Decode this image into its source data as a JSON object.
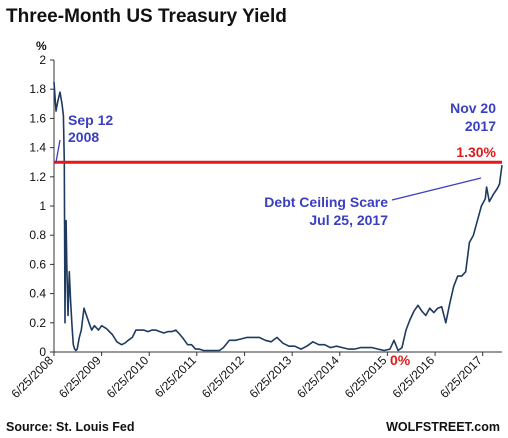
{
  "chart_data": {
    "type": "line",
    "title": "Three-Month US Treasury Yield",
    "ylabel": "%",
    "ylim": [
      0,
      2
    ],
    "yticks": [
      0,
      0.2,
      0.4,
      0.6,
      0.8,
      1,
      1.2,
      1.4,
      1.6,
      1.8,
      2
    ],
    "ytick_labels": [
      "0",
      "0.2",
      "0.4",
      "0.6",
      "0.8",
      "1",
      "1.2",
      "1.4",
      "1.6",
      "1.8",
      "2"
    ],
    "xlim": [
      "2008-06-25",
      "2017-11-20"
    ],
    "xticks": [
      "2008-06-25",
      "2009-06-25",
      "2010-06-25",
      "2011-06-25",
      "2012-06-25",
      "2013-06-25",
      "2014-06-25",
      "2015-06-25",
      "2016-06-25",
      "2017-06-25"
    ],
    "xtick_labels": [
      "6/25/2008",
      "6/25/2009",
      "6/25/2010",
      "6/25/2011",
      "6/25/2012",
      "6/25/2013",
      "6/25/2014",
      "6/25/2015",
      "6/25/2016",
      "6/25/2017"
    ],
    "grid": false,
    "colors": {
      "series": "#1f3a5f",
      "reference": "#e0191b",
      "annotation_blue": "#3a3fc1",
      "annotation_red": "#e0191b"
    },
    "series": [
      {
        "x": [
          "2008-06-25",
          "2008-07-10",
          "2008-07-25",
          "2008-08-10",
          "2008-08-25",
          "2008-09-05",
          "2008-09-12",
          "2008-09-17",
          "2008-09-22",
          "2008-09-26",
          "2008-10-01",
          "2008-10-10",
          "2008-10-20",
          "2008-10-30",
          "2008-11-10",
          "2008-11-20",
          "2008-12-01",
          "2008-12-10",
          "2008-12-20",
          "2009-01-05",
          "2009-01-20",
          "2009-02-10",
          "2009-03-01",
          "2009-03-20",
          "2009-04-10",
          "2009-05-01",
          "2009-06-01",
          "2009-06-25",
          "2009-08-01",
          "2009-09-15",
          "2009-10-20",
          "2009-11-25",
          "2009-12-20",
          "2010-01-15",
          "2010-02-15",
          "2010-03-15",
          "2010-04-15",
          "2010-05-15",
          "2010-06-15",
          "2010-07-15",
          "2010-08-15",
          "2010-09-15",
          "2010-10-15",
          "2010-11-15",
          "2010-12-15",
          "2011-01-15",
          "2011-02-15",
          "2011-03-15",
          "2011-04-15",
          "2011-05-15",
          "2011-06-15",
          "2011-07-15",
          "2011-08-15",
          "2011-09-15",
          "2011-10-15",
          "2011-11-15",
          "2011-12-15",
          "2012-01-15",
          "2012-03-01",
          "2012-04-15",
          "2012-06-01",
          "2012-07-15",
          "2012-09-01",
          "2012-10-15",
          "2012-12-01",
          "2013-01-15",
          "2013-03-01",
          "2013-04-15",
          "2013-06-01",
          "2013-07-15",
          "2013-09-01",
          "2013-10-15",
          "2013-12-01",
          "2014-01-15",
          "2014-03-01",
          "2014-04-15",
          "2014-06-01",
          "2014-07-15",
          "2014-09-01",
          "2014-10-15",
          "2014-12-01",
          "2015-01-15",
          "2015-03-01",
          "2015-04-15",
          "2015-06-01",
          "2015-07-15",
          "2015-08-15",
          "2015-09-15",
          "2015-10-15",
          "2015-11-15",
          "2015-12-15",
          "2016-01-15",
          "2016-02-15",
          "2016-03-15",
          "2016-04-15",
          "2016-05-15",
          "2016-06-15",
          "2016-07-15",
          "2016-08-15",
          "2016-09-15",
          "2016-10-15",
          "2016-11-15",
          "2016-12-15",
          "2017-01-15",
          "2017-02-15",
          "2017-03-15",
          "2017-04-15",
          "2017-05-15",
          "2017-06-15",
          "2017-07-15",
          "2017-07-25",
          "2017-08-15",
          "2017-09-15",
          "2017-10-15",
          "2017-11-01",
          "2017-11-20"
        ],
        "values": [
          1.85,
          1.65,
          1.72,
          1.78,
          1.7,
          1.62,
          1.3,
          0.2,
          0.85,
          0.9,
          0.6,
          0.25,
          0.55,
          0.35,
          0.18,
          0.05,
          0.02,
          0.01,
          0.02,
          0.1,
          0.15,
          0.3,
          0.25,
          0.2,
          0.15,
          0.18,
          0.15,
          0.18,
          0.16,
          0.12,
          0.07,
          0.05,
          0.06,
          0.08,
          0.1,
          0.15,
          0.15,
          0.15,
          0.14,
          0.15,
          0.15,
          0.14,
          0.13,
          0.14,
          0.14,
          0.15,
          0.12,
          0.09,
          0.05,
          0.05,
          0.02,
          0.02,
          0.01,
          0.01,
          0.01,
          0.01,
          0.01,
          0.03,
          0.08,
          0.08,
          0.09,
          0.1,
          0.1,
          0.1,
          0.08,
          0.07,
          0.1,
          0.06,
          0.04,
          0.04,
          0.02,
          0.04,
          0.07,
          0.05,
          0.05,
          0.03,
          0.04,
          0.03,
          0.02,
          0.02,
          0.03,
          0.03,
          0.03,
          0.02,
          0.01,
          0.02,
          0.08,
          0.01,
          0.03,
          0.15,
          0.22,
          0.28,
          0.32,
          0.28,
          0.25,
          0.3,
          0.27,
          0.3,
          0.31,
          0.2,
          0.33,
          0.45,
          0.52,
          0.52,
          0.55,
          0.75,
          0.8,
          0.9,
          1.0,
          1.05,
          1.13,
          1.03,
          1.08,
          1.12,
          1.15,
          1.28
        ]
      }
    ],
    "reference_line": {
      "y": 1.3
    },
    "annotations": [
      {
        "lines": [
          "Sep 12",
          "2008"
        ],
        "x": "2008-09-12",
        "y": 1.3,
        "color": "blue"
      },
      {
        "lines": [
          "Nov 20",
          "2017"
        ],
        "x": "2017-11-20",
        "y": 1.28,
        "color": "blue"
      },
      {
        "lines": [
          "1.30%"
        ],
        "x": "2017-11-20",
        "y": 1.3,
        "color": "red"
      },
      {
        "lines": [
          "Debt Ceiling Scare",
          "Jul 25, 2017"
        ],
        "x": "2017-07-25",
        "y": 1.13,
        "color": "blue"
      },
      {
        "lines": [
          "0%"
        ],
        "x": "2015-06-25",
        "y": 0,
        "color": "red"
      }
    ],
    "source": "Source: St. Louis Fed",
    "watermark": "WOLFSTREET.com"
  }
}
